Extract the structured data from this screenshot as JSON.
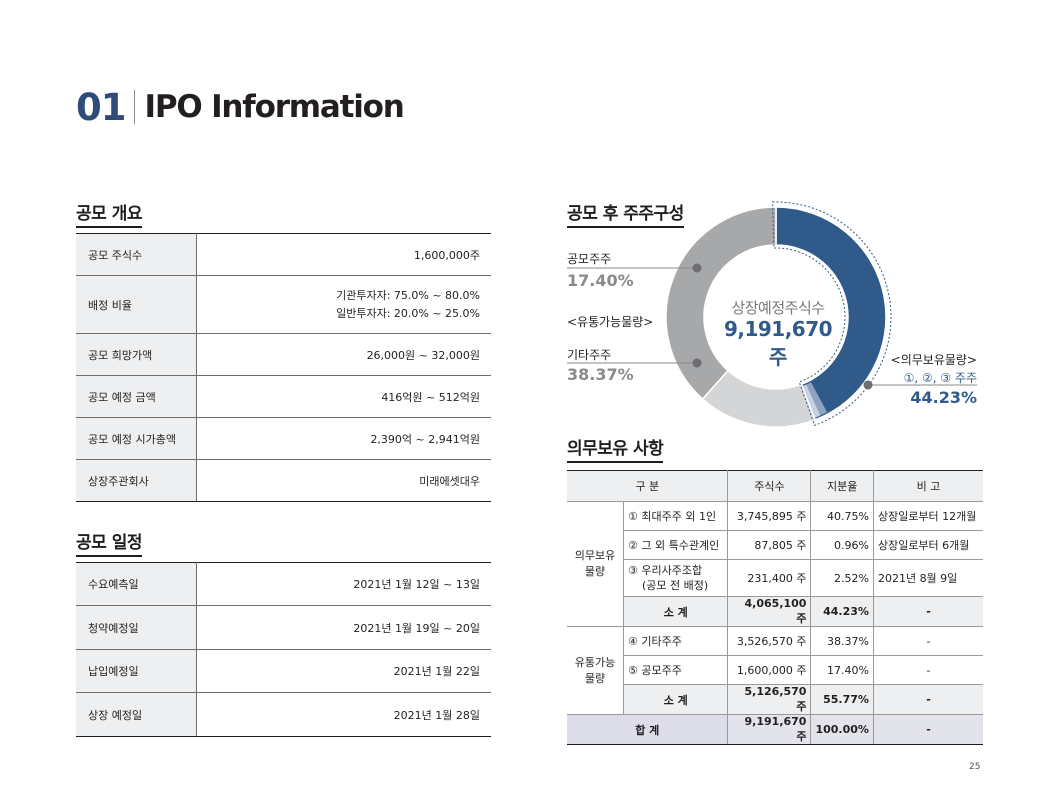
{
  "header": {
    "number": "01",
    "title": "IPO Information"
  },
  "overview": {
    "title": "공모 개요",
    "rows": [
      {
        "label": "공모 주식수",
        "value": "1,600,000주"
      },
      {
        "label": "배정 비율",
        "value_line1": "기관투자자: 75.0% ~ 80.0%",
        "value_line2": "일반투자자: 20.0% ~ 25.0%"
      },
      {
        "label": "공모 희망가액",
        "value": "26,000원 ~ 32,000원"
      },
      {
        "label": "공모 예정 금액",
        "value": "416억원 ~ 512억원"
      },
      {
        "label": "공모 예정 시가총액",
        "value": "2,390억 ~ 2,941억원"
      },
      {
        "label": "상장주관회사",
        "value": "미래에셋대우"
      }
    ]
  },
  "schedule": {
    "title": "공모 일정",
    "rows": [
      {
        "label": "수요예측일",
        "value": "2021년 1월 12일 ~ 13일"
      },
      {
        "label": "청약예정일",
        "value": "2021년 1월 19일 ~ 20일"
      },
      {
        "label": "납입예정일",
        "value": "2021년 1월 22일"
      },
      {
        "label": "상장 예정일",
        "value": "2021년 1월 28일"
      }
    ]
  },
  "chart_data": {
    "type": "pie",
    "title": "공모 후 주주구성",
    "center_label": "상장예정주식수",
    "center_value": "9,191,670 주",
    "slices": [
      {
        "name": "<의무보유물량> ①, ②, ③ 주주",
        "value": 44.23,
        "color": "#2f5a8a"
      },
      {
        "name": "공모주주",
        "value": 17.4,
        "color": "#d4d5d7"
      },
      {
        "name": "기타주주",
        "value": 38.37,
        "color": "#a7a8aa"
      }
    ],
    "labels": {
      "public_name": "공모주주",
      "public_pct": "17.40%",
      "float_group": "<유통가능물량>",
      "other_name": "기타주주",
      "other_pct": "38.37%",
      "lock_group": "<의무보유물량>",
      "lock_name": "①, ②, ③ 주주",
      "lock_pct": "44.23%"
    }
  },
  "lockup": {
    "title": "의무보유 사항",
    "headers": [
      "구 분",
      "주식수",
      "지분율",
      "비 고"
    ],
    "group1": "의무보유\n물량",
    "group1_line1": "의무보유",
    "group1_line2": "물량",
    "rows1": [
      {
        "name": "① 최대주주 외 1인",
        "shares": "3,745,895 주",
        "pct": "40.75%",
        "note": "상장일로부터 12개월"
      },
      {
        "name": "② 그 외 특수관계인",
        "shares": "87,805 주",
        "pct": "0.96%",
        "note": "상장일로부터 6개월"
      },
      {
        "name_line1": "③ 우리사주조합",
        "name_line2": "(공모 전 배정)",
        "shares": "231,400 주",
        "pct": "2.52%",
        "note": "2021년 8월 9일"
      }
    ],
    "sub1": {
      "name": "소 계",
      "shares": "4,065,100 주",
      "pct": "44.23%",
      "note": "-"
    },
    "group2_line1": "유통가능",
    "group2_line2": "물량",
    "rows2": [
      {
        "name": "④ 기타주주",
        "shares": "3,526,570 주",
        "pct": "38.37%",
        "note": "-"
      },
      {
        "name": "⑤ 공모주주",
        "shares": "1,600,000 주",
        "pct": "17.40%",
        "note": "-"
      }
    ],
    "sub2": {
      "name": "소 계",
      "shares": "5,126,570 주",
      "pct": "55.77%",
      "note": "-"
    },
    "total": {
      "name": "합 계",
      "shares": "9,191,670 주",
      "pct": "100.00%",
      "note": "-"
    }
  },
  "page_number": "25"
}
